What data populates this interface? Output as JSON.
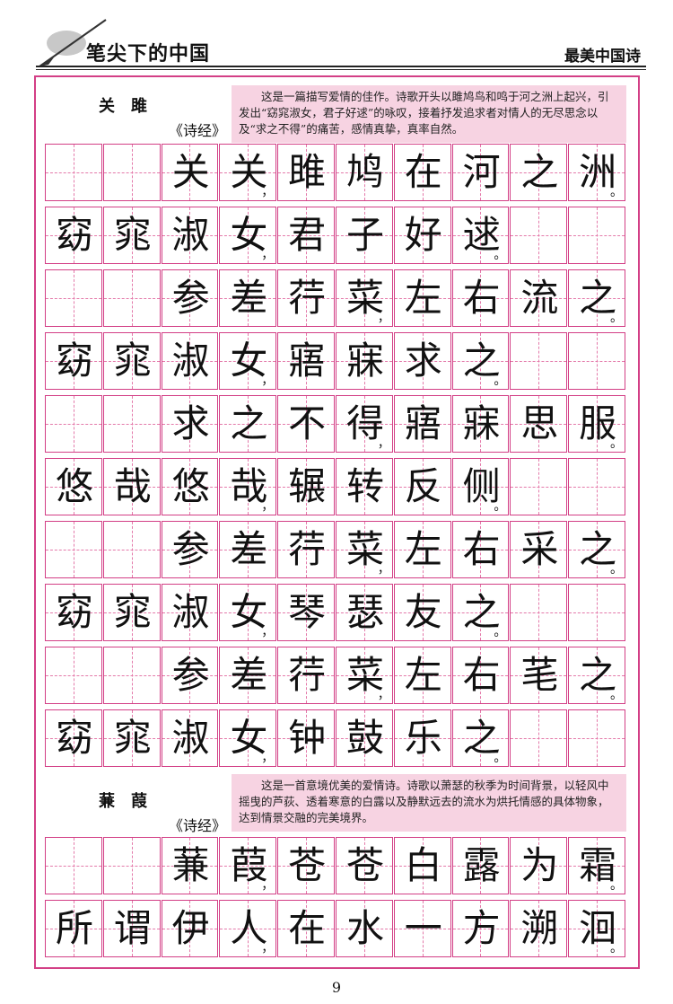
{
  "header": {
    "left_title": "笔尖下的中国",
    "right_title": "最美中国诗"
  },
  "poems": [
    {
      "title": "关雎",
      "source": "《诗经》",
      "intro": "这是一篇描写爱情的佳作。诗歌开头以雎鸠鸟和鸣于河之洲上起兴，引发出“窈窕淑女，君子好逑”的咏叹，接着抒发追求者对情人的无尽思念以及“求之不得”的痛苦，感情真挚，真率自然。",
      "rows": [
        [
          "",
          "",
          "关",
          "关",
          "雎",
          "鸠",
          "在",
          "河",
          "之",
          "洲"
        ],
        [
          "窈",
          "窕",
          "淑",
          "女",
          "君",
          "子",
          "好",
          "逑",
          "",
          ""
        ],
        [
          "",
          "",
          "参",
          "差",
          "荇",
          "菜",
          "左",
          "右",
          "流",
          "之"
        ],
        [
          "窈",
          "窕",
          "淑",
          "女",
          "寤",
          "寐",
          "求",
          "之",
          "",
          ""
        ],
        [
          "",
          "",
          "求",
          "之",
          "不",
          "得",
          "寤",
          "寐",
          "思",
          "服"
        ],
        [
          "悠",
          "哉",
          "悠",
          "哉",
          "辗",
          "转",
          "反",
          "侧",
          "",
          ""
        ],
        [
          "",
          "",
          "参",
          "差",
          "荇",
          "菜",
          "左",
          "右",
          "采",
          "之"
        ],
        [
          "窈",
          "窕",
          "淑",
          "女",
          "琴",
          "瑟",
          "友",
          "之",
          "",
          ""
        ],
        [
          "",
          "",
          "参",
          "差",
          "荇",
          "菜",
          "左",
          "右",
          "芼",
          "之"
        ],
        [
          "窈",
          "窕",
          "淑",
          "女",
          "钟",
          "鼓",
          "乐",
          "之",
          "",
          ""
        ]
      ]
    },
    {
      "title": "蒹葭",
      "source": "《诗经》",
      "intro": "这是一首意境优美的爱情诗。诗歌以萧瑟的秋季为时间背景，以轻风中摇曳的芦荻、透着寒意的白露以及静默远去的流水为烘托情感的具体物象，达到情景交融的完美境界。",
      "rows": [
        [
          "",
          "",
          "蒹",
          "葭",
          "苍",
          "苍",
          "白",
          "露",
          "为",
          "霜"
        ],
        [
          "所",
          "谓",
          "伊",
          "人",
          "在",
          "水",
          "一",
          "方",
          "溯",
          "洄"
        ]
      ]
    }
  ],
  "punctuation": {
    "comma": "，",
    "period": "。"
  },
  "page_number": "9"
}
